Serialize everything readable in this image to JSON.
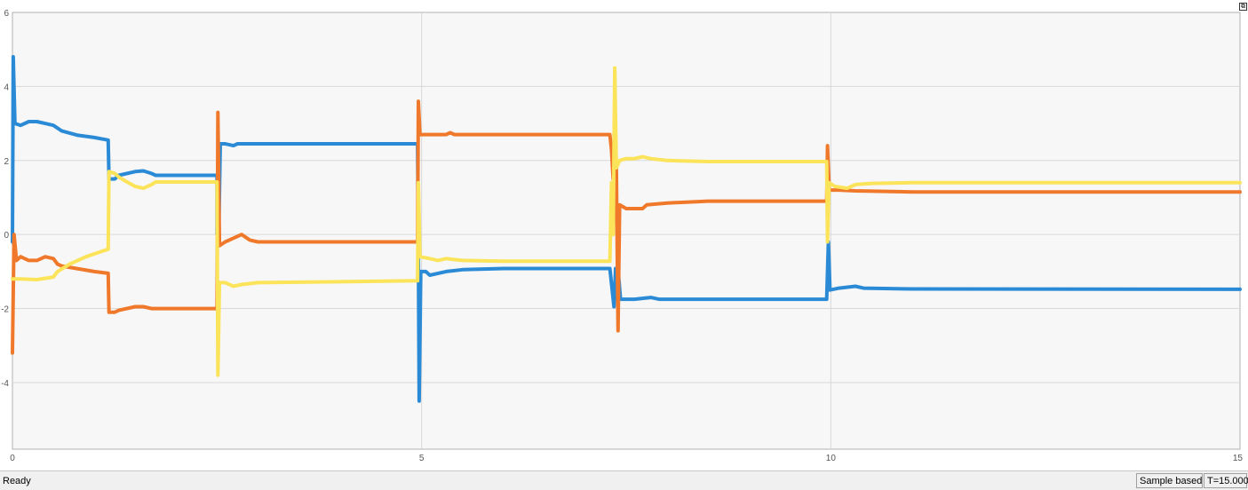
{
  "status": {
    "ready": "Ready",
    "mode": "Sample based",
    "time": "T=15.000"
  },
  "icons": {
    "undock": "undock-icon"
  },
  "chart_data": {
    "type": "line",
    "title": "",
    "xlabel": "",
    "ylabel": "",
    "xlim": [
      0,
      15
    ],
    "ylim": [
      -5.8,
      6
    ],
    "xticks": [
      0,
      5,
      10,
      15
    ],
    "yticks": [
      -4,
      -2,
      0,
      2,
      4,
      6
    ],
    "grid": true,
    "legend": "none",
    "series": [
      {
        "color": "#2a8ad6",
        "points": [
          [
            0,
            -0.2
          ],
          [
            0.01,
            4.8
          ],
          [
            0.03,
            3.0
          ],
          [
            0.1,
            2.95
          ],
          [
            0.2,
            3.05
          ],
          [
            0.3,
            3.05
          ],
          [
            0.4,
            3.0
          ],
          [
            0.5,
            2.95
          ],
          [
            0.6,
            2.8
          ],
          [
            0.8,
            2.68
          ],
          [
            1.0,
            2.62
          ],
          [
            1.17,
            2.55
          ],
          [
            1.18,
            1.5
          ],
          [
            1.25,
            1.5
          ],
          [
            1.3,
            1.6
          ],
          [
            1.5,
            1.7
          ],
          [
            1.6,
            1.72
          ],
          [
            1.7,
            1.65
          ],
          [
            1.75,
            1.6
          ],
          [
            1.8,
            1.6
          ],
          [
            2.5,
            1.6
          ],
          [
            2.5,
            0.0
          ],
          [
            2.52,
            -0.1
          ],
          [
            2.54,
            2.45
          ],
          [
            2.6,
            2.45
          ],
          [
            2.7,
            2.4
          ],
          [
            2.75,
            2.45
          ],
          [
            3.0,
            2.45
          ],
          [
            4.95,
            2.45
          ],
          [
            4.96,
            -0.5
          ],
          [
            4.97,
            -4.5
          ],
          [
            4.99,
            -1.0
          ],
          [
            5.05,
            -1.0
          ],
          [
            5.1,
            -1.1
          ],
          [
            5.3,
            -1.0
          ],
          [
            5.5,
            -0.95
          ],
          [
            6.0,
            -0.92
          ],
          [
            7.3,
            -0.92
          ],
          [
            7.35,
            -1.95
          ],
          [
            7.37,
            -0.92
          ],
          [
            7.4,
            -0.92
          ],
          [
            7.43,
            -1.75
          ],
          [
            7.6,
            -1.75
          ],
          [
            7.8,
            -1.7
          ],
          [
            7.9,
            -1.75
          ],
          [
            9.95,
            -1.75
          ],
          [
            9.96,
            -1.0
          ],
          [
            9.97,
            -0.2
          ],
          [
            9.99,
            -1.5
          ],
          [
            10.1,
            -1.45
          ],
          [
            10.3,
            -1.4
          ],
          [
            10.4,
            -1.45
          ],
          [
            11.0,
            -1.47
          ],
          [
            15,
            -1.48
          ]
        ]
      },
      {
        "color": "#f0782a",
        "points": [
          [
            0,
            -3.2
          ],
          [
            0.02,
            0.0
          ],
          [
            0.05,
            -0.7
          ],
          [
            0.1,
            -0.6
          ],
          [
            0.2,
            -0.7
          ],
          [
            0.3,
            -0.7
          ],
          [
            0.4,
            -0.6
          ],
          [
            0.5,
            -0.65
          ],
          [
            0.55,
            -0.8
          ],
          [
            0.6,
            -0.85
          ],
          [
            1.0,
            -1.0
          ],
          [
            1.17,
            -1.05
          ],
          [
            1.18,
            -2.1
          ],
          [
            1.25,
            -2.1
          ],
          [
            1.3,
            -2.05
          ],
          [
            1.5,
            -1.95
          ],
          [
            1.6,
            -1.95
          ],
          [
            1.7,
            -2.0
          ],
          [
            1.75,
            -2.0
          ],
          [
            2.5,
            -2.0
          ],
          [
            2.51,
            3.3
          ],
          [
            2.53,
            -0.3
          ],
          [
            2.6,
            -0.2
          ],
          [
            2.7,
            -0.1
          ],
          [
            2.8,
            0.0
          ],
          [
            2.9,
            -0.15
          ],
          [
            3.0,
            -0.2
          ],
          [
            4.95,
            -0.2
          ],
          [
            4.96,
            3.6
          ],
          [
            4.98,
            2.7
          ],
          [
            5.1,
            2.7
          ],
          [
            5.3,
            2.7
          ],
          [
            5.35,
            2.75
          ],
          [
            5.4,
            2.7
          ],
          [
            5.6,
            2.7
          ],
          [
            7.3,
            2.7
          ],
          [
            7.32,
            2.3
          ],
          [
            7.34,
            1.5
          ],
          [
            7.36,
            2.6
          ],
          [
            7.38,
            1.8
          ],
          [
            7.4,
            -2.6
          ],
          [
            7.42,
            0.8
          ],
          [
            7.5,
            0.7
          ],
          [
            7.6,
            0.7
          ],
          [
            7.7,
            0.7
          ],
          [
            7.75,
            0.8
          ],
          [
            8.0,
            0.85
          ],
          [
            8.5,
            0.9
          ],
          [
            9.95,
            0.9
          ],
          [
            9.96,
            2.4
          ],
          [
            9.98,
            1.2
          ],
          [
            10.1,
            1.2
          ],
          [
            10.3,
            1.18
          ],
          [
            11.0,
            1.15
          ],
          [
            15,
            1.15
          ]
        ]
      },
      {
        "color": "#fbe35a",
        "points": [
          [
            0,
            -1.2
          ],
          [
            0.1,
            -1.2
          ],
          [
            0.3,
            -1.22
          ],
          [
            0.5,
            -1.15
          ],
          [
            0.55,
            -1.0
          ],
          [
            0.7,
            -0.8
          ],
          [
            0.9,
            -0.6
          ],
          [
            1.1,
            -0.45
          ],
          [
            1.17,
            -0.4
          ],
          [
            1.18,
            1.7
          ],
          [
            1.25,
            1.65
          ],
          [
            1.3,
            1.55
          ],
          [
            1.4,
            1.42
          ],
          [
            1.5,
            1.3
          ],
          [
            1.6,
            1.25
          ],
          [
            1.7,
            1.35
          ],
          [
            1.75,
            1.42
          ],
          [
            2.5,
            1.42
          ],
          [
            2.51,
            -3.8
          ],
          [
            2.53,
            -1.3
          ],
          [
            2.6,
            -1.3
          ],
          [
            2.7,
            -1.4
          ],
          [
            2.8,
            -1.35
          ],
          [
            3.0,
            -1.3
          ],
          [
            4.95,
            -1.25
          ],
          [
            4.96,
            1.4
          ],
          [
            4.98,
            -0.6
          ],
          [
            5.1,
            -0.65
          ],
          [
            5.2,
            -0.7
          ],
          [
            5.3,
            -0.65
          ],
          [
            5.5,
            -0.7
          ],
          [
            6.0,
            -0.72
          ],
          [
            7.3,
            -0.72
          ],
          [
            7.32,
            1.4
          ],
          [
            7.34,
            0.0
          ],
          [
            7.36,
            4.5
          ],
          [
            7.38,
            1.8
          ],
          [
            7.42,
            2.0
          ],
          [
            7.5,
            2.05
          ],
          [
            7.6,
            2.05
          ],
          [
            7.7,
            2.1
          ],
          [
            7.8,
            2.05
          ],
          [
            8.0,
            2.0
          ],
          [
            8.5,
            1.97
          ],
          [
            9.95,
            1.97
          ],
          [
            9.96,
            -0.2
          ],
          [
            9.98,
            1.4
          ],
          [
            10.05,
            1.3
          ],
          [
            10.2,
            1.25
          ],
          [
            10.3,
            1.35
          ],
          [
            10.5,
            1.38
          ],
          [
            11.0,
            1.4
          ],
          [
            15,
            1.4
          ]
        ]
      }
    ]
  }
}
